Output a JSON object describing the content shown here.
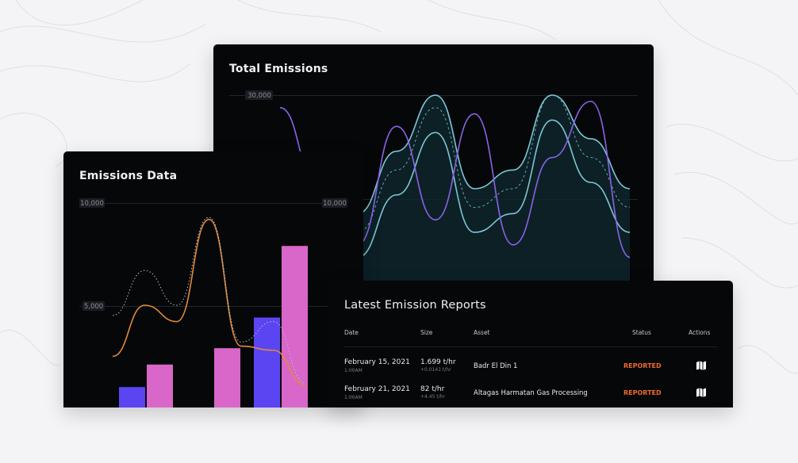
{
  "colors": {
    "background": "#f4f4f6",
    "card": "#060709",
    "cyan": "#7cc6d4",
    "purple": "#8b63e6",
    "orange": "#e08a3c",
    "violet_bar": "#5b45f2",
    "pink_bar": "#d966c9",
    "status_reported": "#ef6a2b"
  },
  "total_emissions": {
    "title": "Total Emissions",
    "y_tick_labels": [
      "30,000",
      "10,000"
    ],
    "chart_data": {
      "type": "area",
      "ylim": [
        0,
        30000
      ],
      "series": [
        {
          "style": "cyan band with dashed midline",
          "values": [
            16000,
            12000,
            8000,
            18000,
            28000,
            12000,
            15000,
            30000,
            20000,
            12000
          ]
        },
        {
          "style": "purple line",
          "values": [
            28000,
            15000,
            6000,
            25000,
            10000,
            27000,
            6000,
            20000,
            29000,
            4000
          ]
        }
      ]
    }
  },
  "emissions_data": {
    "title": "Emissions Data",
    "y_tick_labels": [
      "10,000",
      "5,000"
    ],
    "chart_data": {
      "type": "bar",
      "ylim": [
        0,
        10000
      ],
      "bars": [
        {
          "group": 1,
          "violet": 1000,
          "pink": 2100
        },
        {
          "group": 2,
          "violet": null,
          "pink": 2900
        },
        {
          "group": 3,
          "violet": 4400,
          "pink": 7900
        }
      ],
      "lines": [
        {
          "style": "orange",
          "values": [
            2500,
            5000,
            4200,
            9200,
            3000,
            2800,
            1100
          ]
        },
        {
          "style": "dotted",
          "values": [
            4500,
            6700,
            5000,
            9300,
            3200,
            4200,
            1200
          ]
        }
      ]
    }
  },
  "reports": {
    "title": "Latest Emission Reports",
    "columns": [
      "Date",
      "Size",
      "Asset",
      "Status",
      "Actions"
    ],
    "rows": [
      {
        "date": "February 15, 2021",
        "time": "1:00AM",
        "size": "1.699 t/hr",
        "size_delta": "+0.0141 t/hr",
        "asset": "Badr El Din 1",
        "status": "REPORTED",
        "action_icon": "map-icon"
      },
      {
        "date": "February 21, 2021",
        "time": "1:00AM",
        "size": "82 t/hr",
        "size_delta": "+4.45 t/hr",
        "asset": "Altagas Harmatan Gas Processing",
        "status": "REPORTED",
        "action_icon": "map-icon"
      }
    ]
  }
}
